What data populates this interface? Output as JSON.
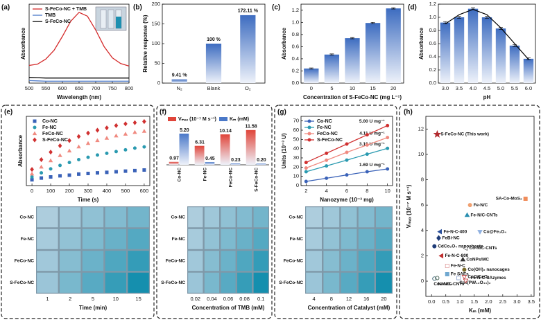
{
  "chart_data": [
    {
      "type": "line",
      "label": "(a)",
      "xlabel": "Wavelength (nm)",
      "ylabel": "Absorbance",
      "xlim": [
        500,
        800
      ],
      "xticks": [
        500,
        550,
        600,
        650,
        700,
        750,
        800
      ],
      "ylim": [
        0,
        1.25
      ],
      "legend": "upper left",
      "x": [
        500,
        525,
        550,
        575,
        600,
        625,
        650,
        675,
        700,
        725,
        750,
        775,
        800
      ],
      "series": [
        {
          "name": "S-FeCo-NC + TMB",
          "color": "#d42a2a",
          "values": [
            0.28,
            0.3,
            0.38,
            0.52,
            0.74,
            0.98,
            1.12,
            1.06,
            0.84,
            0.58,
            0.4,
            0.31,
            0.27
          ]
        },
        {
          "name": "TMB",
          "color": "#4a78c8",
          "values": [
            0.04,
            0.035,
            0.03,
            0.03,
            0.03,
            0.03,
            0.03,
            0.03,
            0.03,
            0.03,
            0.03,
            0.03,
            0.03
          ]
        },
        {
          "name": "S-FeCo-NC",
          "color": "#000000",
          "values": [
            0.09,
            0.085,
            0.08,
            0.08,
            0.08,
            0.08,
            0.08,
            0.08,
            0.08,
            0.08,
            0.08,
            0.08,
            0.08
          ]
        }
      ]
    },
    {
      "type": "bar",
      "label": "(b)",
      "ylabel": "Relative response (%)",
      "color": "#3d6cc0",
      "categories": [
        "N₂",
        "Blank",
        "O₂"
      ],
      "values": [
        9.41,
        100,
        172.11
      ],
      "value_labels": [
        "9.41 %",
        "100 %",
        "172.11 %"
      ],
      "ylim": [
        0,
        200
      ],
      "yticks": [
        0,
        50,
        100,
        150,
        200
      ]
    },
    {
      "type": "bar",
      "label": "(c)",
      "xlabel": "Concentration of S-FeCo-NC (mg L⁻¹)",
      "ylabel": "Absorbance",
      "color": "#3d6cc0",
      "categories": [
        "0",
        "5",
        "10",
        "15",
        "20"
      ],
      "values": [
        0.24,
        0.47,
        0.74,
        0.99,
        1.23
      ],
      "errors": [
        0.01,
        0.01,
        0.01,
        0.01,
        0.01
      ],
      "ylim": [
        0,
        1.3
      ],
      "yticks": [
        {
          "value": 0,
          "label": "0.0"
        },
        0.2,
        0.4,
        0.6,
        0.8,
        {
          "value": 1,
          "label": "1.0"
        },
        1.2
      ]
    },
    {
      "type": "bar",
      "label": "(d)",
      "xlabel": "pH",
      "ylabel": "Absorbance",
      "color": "#3d6cc0",
      "fit_color": "#000000",
      "categories": [
        "3.0",
        "3.5",
        "4.0",
        "4.5",
        "5.0",
        "5.5",
        "6.0"
      ],
      "values": [
        0.92,
        1.0,
        1.13,
        1.0,
        0.83,
        0.57,
        0.37
      ],
      "errors": [
        0.015,
        0.015,
        0.015,
        0.015,
        0.015,
        0.015,
        0.015
      ],
      "fit": [
        0.9,
        1.04,
        1.12,
        1.04,
        0.84,
        0.6,
        0.36
      ],
      "ylim": [
        0,
        1.2
      ],
      "yticks": [
        {
          "value": 0,
          "label": "0.0"
        },
        0.2,
        0.4,
        0.6,
        0.8,
        {
          "value": 1,
          "label": "1.0"
        },
        1.2
      ]
    },
    {
      "type": "scatter",
      "label": "(e)",
      "xlabel": "Time (s)",
      "ylabel": "Absorbance",
      "legend": "upper left",
      "xlim": [
        -30,
        630
      ],
      "xticks": [
        0,
        100,
        200,
        300,
        400,
        500,
        600
      ],
      "ylim": [
        0,
        1.2
      ],
      "x": [
        0,
        50,
        100,
        150,
        200,
        250,
        300,
        350,
        400,
        450,
        500,
        550,
        600
      ],
      "series": [
        {
          "name": "Co-NC",
          "color": "#3a62b8",
          "marker": "square",
          "values": [
            0.1,
            0.13,
            0.15,
            0.17,
            0.18,
            0.2,
            0.21,
            0.22,
            0.23,
            0.24,
            0.25,
            0.26,
            0.27
          ]
        },
        {
          "name": "Fe-NC",
          "color": "#2a9ab0",
          "marker": "circle",
          "values": [
            0.15,
            0.22,
            0.29,
            0.35,
            0.4,
            0.45,
            0.49,
            0.53,
            0.56,
            0.59,
            0.62,
            0.65,
            0.67
          ]
        },
        {
          "name": "FeCo-NC",
          "color": "#f08a80",
          "marker": "triangle",
          "values": [
            0.2,
            0.32,
            0.43,
            0.52,
            0.6,
            0.67,
            0.73,
            0.78,
            0.82,
            0.86,
            0.89,
            0.92,
            0.94
          ]
        },
        {
          "name": "S-FeCo-NC",
          "color": "#d03030",
          "marker": "diamond",
          "values": [
            0.28,
            0.45,
            0.58,
            0.69,
            0.78,
            0.85,
            0.91,
            0.96,
            1.0,
            1.04,
            1.07,
            1.09,
            1.11
          ]
        }
      ],
      "photo_rows": [
        "Co-NC",
        "Fe-NC",
        "FeCo-NC",
        "S-FeCo-NC"
      ],
      "photo_columns": [
        "1",
        "2",
        "5",
        "10",
        "15"
      ],
      "photo_xlabel": "Time (min)"
    },
    {
      "type": "bar",
      "label": "(f)",
      "legend": "upper center",
      "ylim": [
        0,
        12
      ],
      "y2lim": [
        0,
        6
      ],
      "categories": [
        "Co-NC",
        "Fe-NC",
        "FeCo-NC",
        "S-FeCo-NC"
      ],
      "series": [
        {
          "name": "Vₘₐₓ (10⁻⁷ M s⁻¹)",
          "color": "#e0453a",
          "values": [
            0.97,
            6.31,
            10.14,
            11.58
          ],
          "value_labels": [
            "0.97",
            "6.31",
            "10.14",
            "11.58"
          ]
        },
        {
          "name": "Kₘ (mM)",
          "color": "#4a78c8",
          "axis": "y2",
          "values": [
            5.2,
            0.45,
            0.23,
            0.2
          ],
          "value_labels": [
            "5.20",
            "0.45",
            "0.23",
            "0.20"
          ]
        }
      ],
      "photo_rows": [
        "Co-NC",
        "Fe-NC",
        "FeCo-NC",
        "S-FeCo-NC"
      ],
      "photo_columns": [
        "0.02",
        "0.04",
        "0.06",
        "0.08",
        "0.1"
      ],
      "photo_xlabel": "Concentration of TMB (mM)"
    },
    {
      "type": "line",
      "markers": true,
      "label": "(g)",
      "xlabel": "Nanozyme (10⁻³ mg)",
      "ylabel": "Units (10⁻³ U)",
      "legend": "upper left",
      "xlim": [
        1.5,
        10.5
      ],
      "xticks": [
        2,
        4,
        6,
        8,
        10
      ],
      "ylim": [
        0,
        75
      ],
      "yticks": [
        0,
        10,
        20,
        30,
        40,
        50,
        60,
        70
      ],
      "x": [
        2,
        4,
        6,
        8,
        10
      ],
      "series": [
        {
          "name": "Co-NC",
          "color": "#3a62b8",
          "marker": "circle",
          "values": [
            4.5,
            8,
            11.5,
            15,
            18
          ],
          "slope_label": "1.69 U mg⁻¹"
        },
        {
          "name": "Fe-NC",
          "color": "#2a9ab0",
          "marker": "circle",
          "values": [
            15,
            21.3,
            27.6,
            34,
            40.3
          ],
          "slope_label": "3.16 U mg⁻¹"
        },
        {
          "name": "FeCo-NC",
          "color": "#f08a80",
          "marker": "circle",
          "values": [
            19,
            27.5,
            36,
            44,
            52
          ],
          "slope_label": "4.11 U mg⁻¹"
        },
        {
          "name": "S-FeCo-NC",
          "color": "#d03030",
          "marker": "circle",
          "values": [
            25,
            35,
            45,
            55,
            65
          ],
          "slope_label": "5.00 U mg⁻¹"
        }
      ],
      "photo_rows": [
        "Co-NC",
        "Fe-NC",
        "FeCo-NC",
        "S-FeCo-NC"
      ],
      "photo_columns": [
        "4",
        "8",
        "12",
        "16",
        "20"
      ],
      "photo_xlabel": "Concentration of Catalyst (mM)"
    },
    {
      "type": "scatter",
      "label": "(h)",
      "xlabel": "Kₘ (mM)",
      "ylabel": "Vₘₐₓ (10⁻⁷ M s⁻¹)",
      "xlim": [
        -0.2,
        3.6
      ],
      "xticks": [
        {
          "value": 0,
          "label": "0.0"
        },
        0.5,
        {
          "value": 1,
          "label": "1.0"
        },
        1.5,
        {
          "value": 2,
          "label": "2.0"
        },
        2.5,
        {
          "value": 3,
          "label": "3.0"
        },
        3.5
      ],
      "ylim": [
        -1.2,
        13
      ],
      "yticks": [
        0,
        2,
        4,
        6,
        8,
        10,
        12
      ],
      "points": [
        {
          "name": "S-FeCo-NC (This work)",
          "x": 0.2,
          "y": 11.58,
          "color": "#b22a2e",
          "marker": "star"
        },
        {
          "name": "Fe-N/C",
          "x": 1.35,
          "y": 6.0,
          "color": "#f0a070",
          "marker": "circle"
        },
        {
          "name": "SA-Co-MoS₂",
          "x": 3.3,
          "y": 6.5,
          "color": "#f08c5a",
          "marker": "square"
        },
        {
          "name": "Fe-N/C-CNTs",
          "x": 1.25,
          "y": 5.2,
          "color": "#2a8fb0",
          "marker": "triangle"
        },
        {
          "name": "Fe-N-C-400",
          "x": 0.3,
          "y": 3.9,
          "color": "#2a4f9a",
          "marker": "triangle-left"
        },
        {
          "name": "Co@Fe₃O₄",
          "x": 1.7,
          "y": 3.9,
          "color": "#8fb0e0",
          "marker": "triangle-down"
        },
        {
          "name": "FeBi-NC",
          "x": 0.25,
          "y": 3.4,
          "color": "#1f3c78",
          "marker": "diamond"
        },
        {
          "name": "CdCo₂O₄ nanosheets",
          "x": 0.1,
          "y": 2.75,
          "color": "#1f3c78",
          "marker": "circle"
        },
        {
          "name": "Co-N/C-CNTs",
          "x": 1.2,
          "y": 2.6,
          "color": "#555555",
          "marker": "triangle-left-open"
        },
        {
          "name": "Fe-N-C-800",
          "x": 0.35,
          "y": 2.0,
          "color": "#c03030",
          "marker": "triangle-left"
        },
        {
          "name": "CoNPs/MC",
          "x": 1.1,
          "y": 1.7,
          "color": "#333333",
          "marker": "triangle"
        },
        {
          "name": "Fe-N-C",
          "x": 0.55,
          "y": 1.2,
          "color": "#e0a0a0",
          "marker": "square-open"
        },
        {
          "name": "Co(OH)₂ nanocages",
          "x": 1.15,
          "y": 0.9,
          "color": "#7a6a2a",
          "marker": "circle"
        },
        {
          "name": "Fe SAEs",
          "x": 0.55,
          "y": 0.55,
          "color": "#70a8d0",
          "marker": "square"
        },
        {
          "name": "Co₃V₂O₈",
          "x": 0.1,
          "y": 0.2,
          "color": "#1d4a5a",
          "marker": "circle-open"
        },
        {
          "name": "Co₃(PW₁₂O₄₀)₂",
          "x": 0.95,
          "y": 0.25,
          "color": "#8aa0d0",
          "marker": "square-open"
        },
        {
          "name": "CoO/CeO₂",
          "x": 1.15,
          "y": 0.35,
          "color": "#c03030",
          "marker": "triangle-down-open"
        },
        {
          "name": "Fe-N-C SAzymes",
          "x": 1.2,
          "y": 0.05,
          "color": "#c03030",
          "marker": "triangle-down-open"
        },
        {
          "name": "Ni-N/C-CNTs",
          "x": 0.2,
          "y": 0.25,
          "color": "#2a4a3a",
          "marker": "circle-open"
        }
      ]
    }
  ]
}
